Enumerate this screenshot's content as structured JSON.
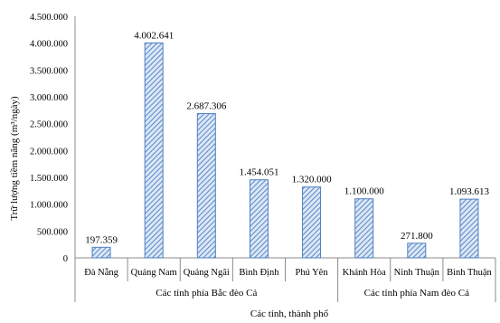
{
  "chart_data": {
    "type": "bar",
    "ylabel": "Trữ lượng tiềm năng (m³/ngày)",
    "xlabel": "Các tỉnh, thành phố",
    "ylim": [
      0,
      4500000
    ],
    "ytick_step": 500000,
    "yticks": [
      "0",
      "500.000",
      "1.000.000",
      "1.500.000",
      "2.000.000",
      "2.500.000",
      "3.000.000",
      "3.500.000",
      "4.000.000",
      "4.500.000"
    ],
    "grid": false,
    "categories": [
      "Đà Nẵng",
      "Quảng Nam",
      "Quảng Ngãi",
      "Bình Định",
      "Phú Yên",
      "Khánh Hòa",
      "Ninh Thuận",
      "Bình Thuận"
    ],
    "values": [
      197359,
      4002641,
      2687306,
      1454051,
      1320000,
      1100000,
      271800,
      1093613
    ],
    "value_labels": [
      "197.359",
      "4.002.641",
      "2.687.306",
      "1.454.051",
      "1.320.000",
      "1.100.000",
      "271.800",
      "1.093.613"
    ],
    "groups": [
      {
        "label": "Các tỉnh phía Bắc đèo Cả",
        "count": 5
      },
      {
        "label": "Các tỉnh phía Nam đèo Cả",
        "count": 3
      }
    ],
    "bar_pattern": "diagonal-hatch",
    "colors": {
      "bar_fill": "#dbe7f7",
      "hatch": "#5b87c4",
      "bar_stroke": "#4f7fbf",
      "axis": "#8c8c8c"
    }
  }
}
